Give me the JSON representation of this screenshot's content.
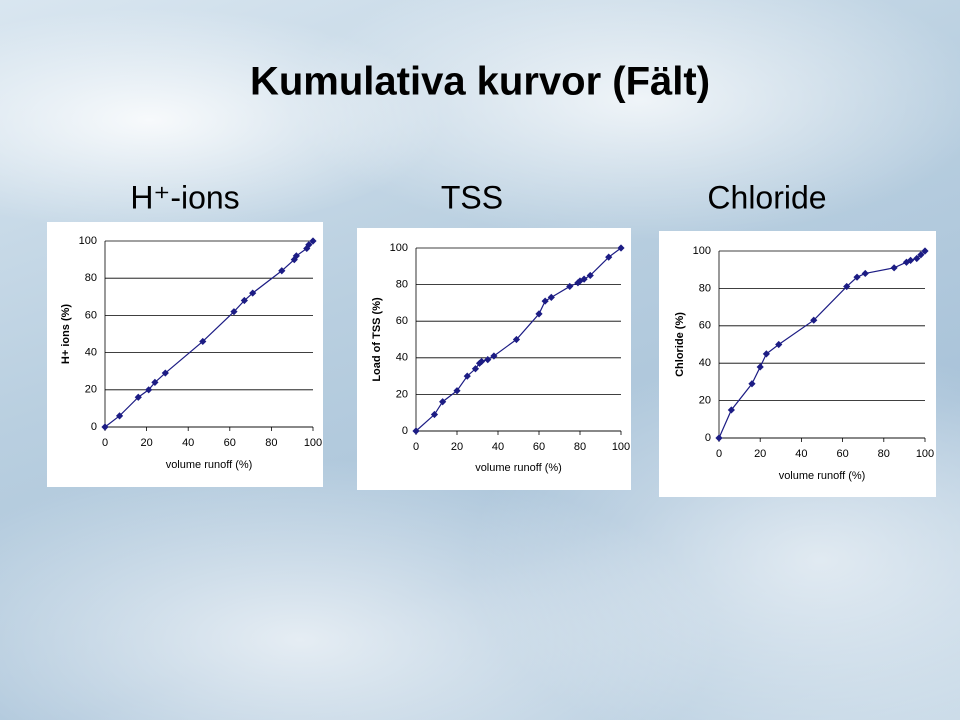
{
  "title": "Kumulativa kurvor (Fält)",
  "chart_data": [
    {
      "type": "line",
      "title": "H⁺-ions",
      "ylabel": "H+ ions (%)",
      "xlabel": "volume runoff (%)",
      "xlim": [
        0,
        100
      ],
      "ylim": [
        0,
        100
      ],
      "xticks": [
        0,
        20,
        40,
        60,
        80,
        100
      ],
      "yticks": [
        0,
        20,
        40,
        60,
        80,
        100
      ],
      "grid": true,
      "color": "#1c1c84",
      "x": [
        0,
        7,
        16,
        21,
        24,
        29,
        47,
        62,
        67,
        71,
        85,
        91,
        92,
        97,
        98,
        100
      ],
      "values": [
        0,
        6,
        16,
        20,
        24,
        29,
        46,
        62,
        68,
        72,
        84,
        90,
        92,
        96,
        98,
        100
      ]
    },
    {
      "type": "line",
      "title": "TSS",
      "ylabel": "Load of TSS (%)",
      "xlabel": "volume runoff (%)",
      "xlim": [
        0,
        100
      ],
      "ylim": [
        0,
        100
      ],
      "xticks": [
        0,
        20,
        40,
        60,
        80,
        100
      ],
      "yticks": [
        0,
        20,
        40,
        60,
        80,
        100
      ],
      "grid": true,
      "color": "#1c1c84",
      "x": [
        0,
        9,
        13,
        20,
        25,
        29,
        31,
        32,
        35,
        38,
        49,
        60,
        63,
        66,
        75,
        79,
        80,
        82,
        85,
        94,
        100
      ],
      "values": [
        0,
        9,
        16,
        22,
        30,
        34,
        37,
        38,
        39,
        41,
        50,
        64,
        71,
        73,
        79,
        81,
        82,
        83,
        85,
        95,
        100
      ]
    },
    {
      "type": "line",
      "title": "Chloride",
      "ylabel": "Chloride (%)",
      "xlabel": "volume runoff (%)",
      "xlim": [
        0,
        100
      ],
      "ylim": [
        0,
        100
      ],
      "xticks": [
        0,
        20,
        40,
        60,
        80,
        100
      ],
      "yticks": [
        0,
        20,
        40,
        60,
        80,
        100
      ],
      "grid": true,
      "color": "#1c1c84",
      "x": [
        0,
        6,
        16,
        20,
        23,
        29,
        46,
        62,
        67,
        71,
        85,
        91,
        93,
        96,
        98,
        100
      ],
      "values": [
        0,
        15,
        29,
        38,
        45,
        50,
        63,
        81,
        86,
        88,
        91,
        94,
        95,
        96,
        98,
        100
      ]
    }
  ]
}
